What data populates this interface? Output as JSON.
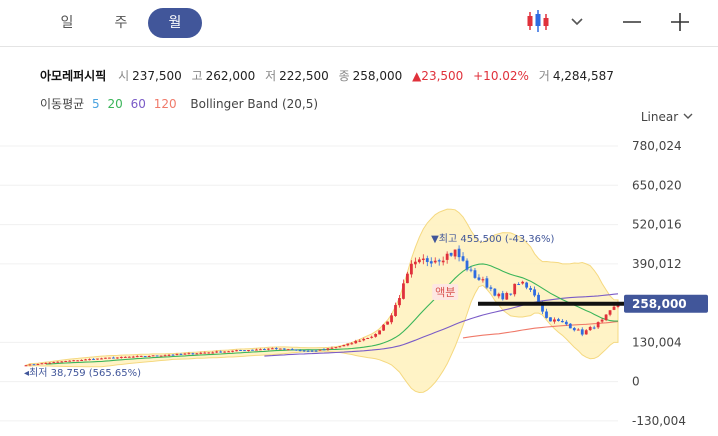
{
  "tabs": [
    {
      "label": "일",
      "active": false
    },
    {
      "label": "주",
      "active": false
    },
    {
      "label": "월",
      "active": true
    }
  ],
  "toolbar": {
    "chart_type_icon": "candlestick-icon",
    "dropdown_icon": "chevron-down-icon",
    "zoom_out_icon": "minus-icon",
    "zoom_in_icon": "plus-icon"
  },
  "stock": {
    "name": "아모레퍼시픽",
    "open_label": "시",
    "open": "237,500",
    "high_label": "고",
    "high": "262,000",
    "low_label": "저",
    "low": "222,500",
    "close_label": "종",
    "close": "258,000",
    "change": "▲23,500",
    "change_pct": "+10.02%",
    "volume_label": "거",
    "volume": "4,284,587"
  },
  "indicators": {
    "ma_label": "이동평균",
    "ma": [
      {
        "period": "5",
        "color": "#4aa3df"
      },
      {
        "period": "20",
        "color": "#3bb55a"
      },
      {
        "period": "60",
        "color": "#7a5bc7"
      },
      {
        "period": "120",
        "color": "#f07a6a"
      }
    ],
    "bollinger": "Bollinger Band (20,5)"
  },
  "scale_mode": "Linear",
  "chart_data": {
    "type": "candlestick",
    "y_ticks": [
      "780,024",
      "650,020",
      "520,016",
      "390,012",
      "130,004",
      "0",
      "-130,004"
    ],
    "y_tick_values": [
      780024,
      650020,
      520016,
      390012,
      130004,
      0,
      -130004
    ],
    "ylim": [
      -180000,
      800000
    ],
    "n_bars": 150,
    "current_price": 258000,
    "current_price_label": "258,000",
    "max_annotation": {
      "text": "▼최고 455,500 (-43.36%)",
      "value": 455500,
      "bar": 108
    },
    "min_annotation": {
      "text": "◂최저 38,759 (565.65%)",
      "value": 38759,
      "bar": 0
    },
    "split_annotation": {
      "text": "액분",
      "bar": 105
    },
    "price_anchors": [
      [
        0,
        55000
      ],
      [
        10,
        68000
      ],
      [
        20,
        78000
      ],
      [
        35,
        88000
      ],
      [
        50,
        100000
      ],
      [
        62,
        110000
      ],
      [
        72,
        100000
      ],
      [
        80,
        120000
      ],
      [
        88,
        155000
      ],
      [
        92,
        220000
      ],
      [
        97,
        380000
      ],
      [
        100,
        400000
      ],
      [
        104,
        410000
      ],
      [
        108,
        430000
      ],
      [
        112,
        360000
      ],
      [
        116,
        320000
      ],
      [
        120,
        270000
      ],
      [
        124,
        330000
      ],
      [
        128,
        290000
      ],
      [
        131,
        210000
      ],
      [
        136,
        190000
      ],
      [
        140,
        160000
      ],
      [
        145,
        200000
      ],
      [
        149,
        258000
      ]
    ],
    "colors": {
      "up": "#e0313b",
      "down": "#2f6be0",
      "band_fill": "#fff3c4",
      "band_line": "#f5d77a",
      "price_line": "#111111",
      "price_tag": "#41569a"
    }
  }
}
